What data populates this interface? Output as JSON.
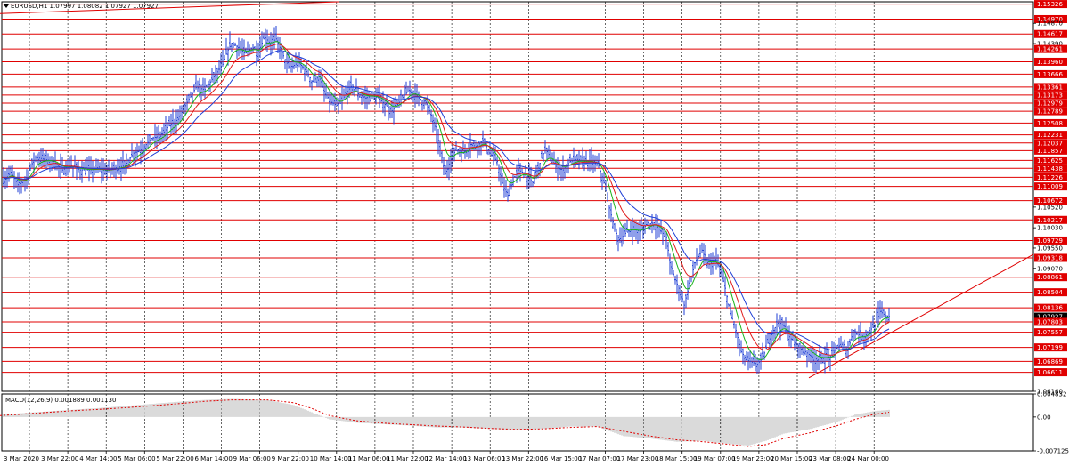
{
  "symbol_info": "EURUSD,H1  1.07997 1.08082 1.07927 1.07927",
  "macd_info": "MACD(12,26,9) 0.001889 0.001130",
  "price_levels": [
    {
      "label": "1.15326",
      "price": 1.15326,
      "line": true
    },
    {
      "label": "1.14970",
      "price": 1.1497,
      "line": true
    },
    {
      "label": "1.14870",
      "price": 1.1487,
      "line": false
    },
    {
      "label": "1.14617",
      "price": 1.14617,
      "line": true
    },
    {
      "label": "1.14390",
      "price": 1.1439,
      "line": false
    },
    {
      "label": "1.14261",
      "price": 1.14261,
      "line": true
    },
    {
      "label": "1.13960",
      "price": 1.1396,
      "line": true
    },
    {
      "label": "1.13666",
      "price": 1.13666,
      "line": true
    },
    {
      "label": "1.13361",
      "price": 1.13361,
      "line": true
    },
    {
      "label": "1.13173",
      "price": 1.13173,
      "line": true
    },
    {
      "label": "1.12979",
      "price": 1.12979,
      "line": true
    },
    {
      "label": "1.12789",
      "price": 1.12789,
      "line": true
    },
    {
      "label": "1.12508",
      "price": 1.12508,
      "line": true
    },
    {
      "label": "1.12231",
      "price": 1.12231,
      "line": true
    },
    {
      "label": "1.12037",
      "price": 1.12037,
      "line": true
    },
    {
      "label": "1.11857",
      "price": 1.11857,
      "line": true
    },
    {
      "label": "1.11625",
      "price": 1.11625,
      "line": true
    },
    {
      "label": "1.11438",
      "price": 1.11438,
      "line": true
    },
    {
      "label": "1.11226",
      "price": 1.11226,
      "line": true
    },
    {
      "label": "1.11009",
      "price": 1.11009,
      "line": true
    },
    {
      "label": "1.10672",
      "price": 1.10672,
      "line": true
    },
    {
      "label": "1.10520",
      "price": 1.1052,
      "line": false
    },
    {
      "label": "1.10217",
      "price": 1.10217,
      "line": true
    },
    {
      "label": "1.10030",
      "price": 1.1003,
      "line": false
    },
    {
      "label": "1.09729",
      "price": 1.09729,
      "line": true
    },
    {
      "label": "1.09550",
      "price": 1.0955,
      "line": false
    },
    {
      "label": "1.09318",
      "price": 1.09318,
      "line": true
    },
    {
      "label": "1.09070",
      "price": 1.0907,
      "line": false
    },
    {
      "label": "1.08861",
      "price": 1.08861,
      "line": true
    },
    {
      "label": "1.08504",
      "price": 1.08504,
      "line": true
    },
    {
      "label": "1.08136",
      "price": 1.08136,
      "line": true
    },
    {
      "label": "1.07927",
      "price": 1.07927,
      "line": false,
      "current": true
    },
    {
      "label": "1.07803",
      "price": 1.07803,
      "line": true
    },
    {
      "label": "1.07557",
      "price": 1.07557,
      "line": true
    },
    {
      "label": "1.07199",
      "price": 1.07199,
      "line": true
    },
    {
      "label": "1.06869",
      "price": 1.06869,
      "line": true
    },
    {
      "label": "1.06611",
      "price": 1.06611,
      "line": true
    },
    {
      "label": "1.06160",
      "price": 1.0616,
      "line": false
    }
  ],
  "macd_levels": [
    {
      "label": "0.004832",
      "value": 0.004832
    },
    {
      "label": "0.00",
      "value": 0
    },
    {
      "label": "-0.007125",
      "value": -0.007125
    }
  ],
  "time_labels": [
    "3 Mar 2020",
    "3 Mar 22:00",
    "4 Mar 14:00",
    "5 Mar 06:00",
    "5 Mar 22:00",
    "6 Mar 14:00",
    "9 Mar 06:00",
    "9 Mar 22:00",
    "10 Mar 14:00",
    "11 Mar 06:00",
    "11 Mar 22:00",
    "12 Mar 14:00",
    "13 Mar 06:00",
    "13 Mar 22:00",
    "16 Mar 15:00",
    "17 Mar 07:00",
    "17 Mar 23:00",
    "18 Mar 15:00",
    "19 Mar 07:00",
    "19 Mar 23:00",
    "20 Mar 15:00",
    "23 Mar 08:00",
    "24 Mar 00:00"
  ],
  "colors": {
    "bars": "#1f3fd6",
    "ma_fast": "#19b319",
    "ma_mid": "#e01c1c",
    "ma_slow": "#1f3fd6",
    "levels": "#e00000",
    "grid": "#000000",
    "label_bg": "#e00000",
    "label_text": "#ffffff",
    "current_bg": "#000000",
    "macd_hist": "#b5b5b5",
    "macd_signal": "#e00000"
  },
  "chart_data": {
    "type": "ohlc",
    "symbol": "EURUSD",
    "timeframe": "H1",
    "ylim": [
      1.0616,
      1.1538
    ],
    "close_path": [
      [
        0,
        1.1125
      ],
      [
        6,
        1.1118
      ],
      [
        12,
        1.1135
      ],
      [
        20,
        1.1105
      ],
      [
        30,
        1.112
      ],
      [
        36,
        1.1155
      ],
      [
        40,
        1.117
      ],
      [
        50,
        1.1165
      ],
      [
        60,
        1.116
      ],
      [
        70,
        1.114
      ],
      [
        80,
        1.115
      ],
      [
        90,
        1.114
      ],
      [
        100,
        1.114
      ],
      [
        110,
        1.1142
      ],
      [
        120,
        1.1138
      ],
      [
        130,
        1.1145
      ],
      [
        140,
        1.115
      ],
      [
        150,
        1.118
      ],
      [
        160,
        1.119
      ],
      [
        170,
        1.1215
      ],
      [
        180,
        1.122
      ],
      [
        190,
        1.1245
      ],
      [
        200,
        1.126
      ],
      [
        210,
        1.13
      ],
      [
        220,
        1.1335
      ],
      [
        230,
        1.133
      ],
      [
        240,
        1.136
      ],
      [
        250,
        1.139
      ],
      [
        255,
        1.142
      ],
      [
        260,
        1.144
      ],
      [
        268,
        1.143
      ],
      [
        275,
        1.1415
      ],
      [
        283,
        1.143
      ],
      [
        290,
        1.142
      ],
      [
        297,
        1.1455
      ],
      [
        303,
        1.144
      ],
      [
        310,
        1.145
      ],
      [
        318,
        1.141
      ],
      [
        325,
        1.138
      ],
      [
        335,
        1.1395
      ],
      [
        345,
        1.137
      ],
      [
        350,
        1.135
      ],
      [
        358,
        1.136
      ],
      [
        365,
        1.132
      ],
      [
        372,
        1.13
      ],
      [
        380,
        1.129
      ],
      [
        388,
        1.132
      ],
      [
        395,
        1.134
      ],
      [
        402,
        1.132
      ],
      [
        410,
        1.131
      ],
      [
        418,
        1.1315
      ],
      [
        425,
        1.131
      ],
      [
        432,
        1.1295
      ],
      [
        440,
        1.128
      ],
      [
        448,
        1.13
      ],
      [
        455,
        1.132
      ],
      [
        462,
        1.133
      ],
      [
        470,
        1.131
      ],
      [
        478,
        1.13
      ],
      [
        484,
        1.127
      ],
      [
        490,
        1.123
      ],
      [
        495,
        1.118
      ],
      [
        500,
        1.113
      ],
      [
        505,
        1.116
      ],
      [
        512,
        1.119
      ],
      [
        520,
        1.118
      ],
      [
        528,
        1.12
      ],
      [
        535,
        1.1195
      ],
      [
        542,
        1.121
      ],
      [
        550,
        1.118
      ],
      [
        558,
        1.116
      ],
      [
        565,
        1.11
      ],
      [
        570,
        1.108
      ],
      [
        575,
        1.111
      ],
      [
        582,
        1.114
      ],
      [
        590,
        1.113
      ],
      [
        598,
        1.111
      ],
      [
        605,
        1.115
      ],
      [
        612,
        1.119
      ],
      [
        618,
        1.117
      ],
      [
        625,
        1.1145
      ],
      [
        632,
        1.114
      ],
      [
        640,
        1.116
      ],
      [
        648,
        1.1165
      ],
      [
        656,
        1.116
      ],
      [
        664,
        1.116
      ],
      [
        672,
        1.115
      ],
      [
        678,
        1.111
      ],
      [
        684,
        1.105
      ],
      [
        690,
        1.1
      ],
      [
        695,
        1.0975
      ],
      [
        702,
        1.099
      ],
      [
        710,
        1.1
      ],
      [
        718,
        1.0995
      ],
      [
        726,
        1.101
      ],
      [
        734,
        1.1015
      ],
      [
        740,
        1.1
      ],
      [
        748,
        1.098
      ],
      [
        752,
        1.092
      ],
      [
        758,
        1.088
      ],
      [
        764,
        1.085
      ],
      [
        768,
        1.082
      ],
      [
        774,
        1.087
      ],
      [
        780,
        1.092
      ],
      [
        788,
        1.095
      ],
      [
        795,
        1.0915
      ],
      [
        802,
        1.0925
      ],
      [
        808,
        1.091
      ],
      [
        814,
        1.086
      ],
      [
        820,
        1.08
      ],
      [
        826,
        1.076
      ],
      [
        832,
        1.071
      ],
      [
        838,
        1.069
      ],
      [
        844,
        1.0685
      ],
      [
        850,
        1.068
      ],
      [
        856,
        1.0695
      ],
      [
        862,
        1.073
      ],
      [
        868,
        1.076
      ],
      [
        874,
        1.078
      ],
      [
        880,
        1.077
      ],
      [
        886,
        1.0745
      ],
      [
        892,
        1.073
      ],
      [
        898,
        1.072
      ],
      [
        904,
        1.071
      ],
      [
        910,
        1.07
      ],
      [
        918,
        1.069
      ],
      [
        926,
        1.0695
      ],
      [
        934,
        1.07
      ],
      [
        940,
        1.0725
      ],
      [
        946,
        1.072
      ],
      [
        952,
        1.0715
      ],
      [
        958,
        1.076
      ],
      [
        964,
        1.075
      ],
      [
        970,
        1.0745
      ],
      [
        976,
        1.076
      ],
      [
        982,
        1.077
      ],
      [
        988,
        1.0805
      ],
      [
        994,
        1.0795
      ],
      [
        998,
        1.0793
      ]
    ],
    "trendlines": [
      {
        "color": "#e00000",
        "from": [
          0,
          1.151
        ],
        "to": [
          380,
          1.1538
        ]
      },
      {
        "color": "#e00000",
        "from": [
          908,
          1.0648
        ],
        "to": [
          1160,
          1.094
        ]
      }
    ],
    "macd": {
      "hist_path": [
        [
          0,
          0.0005
        ],
        [
          40,
          0.001
        ],
        [
          80,
          0.0015
        ],
        [
          120,
          0.002
        ],
        [
          160,
          0.0026
        ],
        [
          200,
          0.0032
        ],
        [
          230,
          0.0036
        ],
        [
          260,
          0.0038
        ],
        [
          300,
          0.0036
        ],
        [
          330,
          0.0025
        ],
        [
          350,
          0.001
        ],
        [
          370,
          -0.0005
        ],
        [
          400,
          -0.0012
        ],
        [
          430,
          -0.0015
        ],
        [
          460,
          -0.0018
        ],
        [
          490,
          -0.0022
        ],
        [
          520,
          -0.0022
        ],
        [
          550,
          -0.0025
        ],
        [
          580,
          -0.0028
        ],
        [
          610,
          -0.0025
        ],
        [
          640,
          -0.002
        ],
        [
          670,
          -0.002
        ],
        [
          700,
          -0.004
        ],
        [
          730,
          -0.0045
        ],
        [
          760,
          -0.0052
        ],
        [
          790,
          -0.005
        ],
        [
          810,
          -0.0055
        ],
        [
          840,
          -0.006
        ],
        [
          860,
          -0.005
        ],
        [
          880,
          -0.0035
        ],
        [
          910,
          -0.0025
        ],
        [
          940,
          -0.001
        ],
        [
          960,
          0.0005
        ],
        [
          980,
          0.0012
        ],
        [
          998,
          0.0015
        ]
      ],
      "signal_path": [
        [
          0,
          0.0003
        ],
        [
          40,
          0.0008
        ],
        [
          80,
          0.0013
        ],
        [
          120,
          0.0017
        ],
        [
          160,
          0.0022
        ],
        [
          200,
          0.0028
        ],
        [
          230,
          0.0033
        ],
        [
          260,
          0.0036
        ],
        [
          300,
          0.0036
        ],
        [
          330,
          0.003
        ],
        [
          350,
          0.0018
        ],
        [
          370,
          0.0003
        ],
        [
          400,
          -0.0008
        ],
        [
          430,
          -0.0013
        ],
        [
          460,
          -0.0016
        ],
        [
          490,
          -0.0019
        ],
        [
          520,
          -0.0021
        ],
        [
          550,
          -0.0024
        ],
        [
          580,
          -0.0026
        ],
        [
          610,
          -0.0025
        ],
        [
          640,
          -0.0022
        ],
        [
          670,
          -0.002
        ],
        [
          700,
          -0.003
        ],
        [
          730,
          -0.004
        ],
        [
          760,
          -0.0048
        ],
        [
          790,
          -0.0052
        ],
        [
          810,
          -0.0056
        ],
        [
          840,
          -0.0062
        ],
        [
          860,
          -0.0058
        ],
        [
          880,
          -0.0045
        ],
        [
          910,
          -0.0033
        ],
        [
          940,
          -0.0018
        ],
        [
          960,
          -0.0005
        ],
        [
          980,
          0.0005
        ],
        [
          998,
          0.001
        ]
      ]
    }
  }
}
